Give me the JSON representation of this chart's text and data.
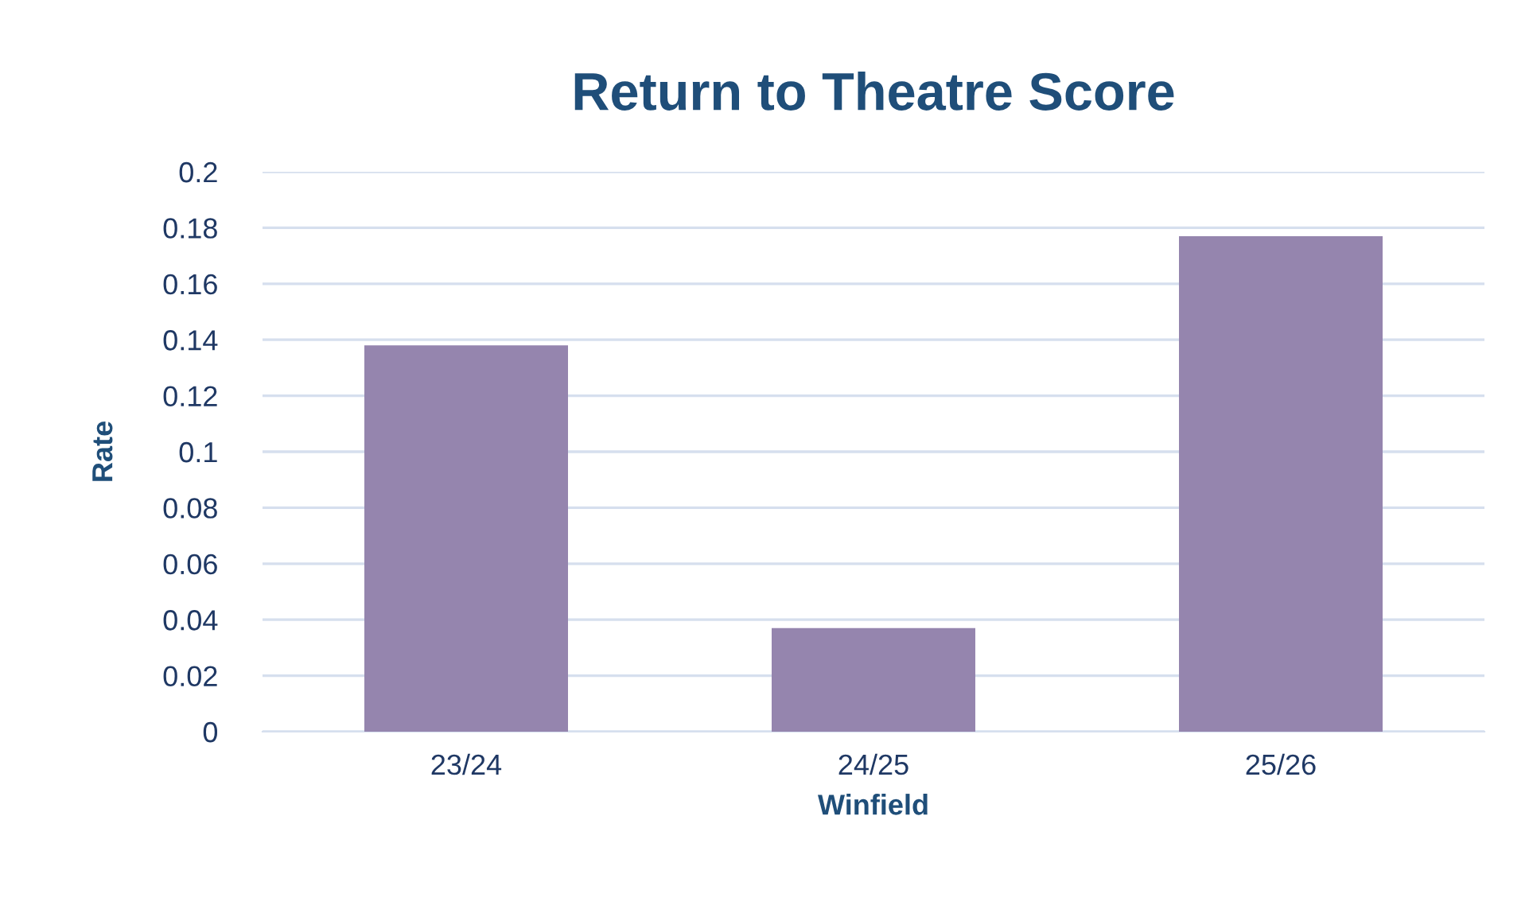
{
  "chart_data": {
    "type": "bar",
    "title": "Return to Theatre Score",
    "xlabel": "Winfield",
    "ylabel": "Rate",
    "categories": [
      "23/24",
      "24/25",
      "25/26"
    ],
    "values": [
      0.138,
      0.037,
      0.177
    ],
    "color": "#9585ae",
    "ylim": [
      0,
      0.2
    ],
    "yticks": [
      0,
      0.02,
      0.04,
      0.06,
      0.08,
      0.1,
      0.12,
      0.14,
      0.16,
      0.18,
      0.2
    ],
    "grid": "y",
    "legend": false
  }
}
